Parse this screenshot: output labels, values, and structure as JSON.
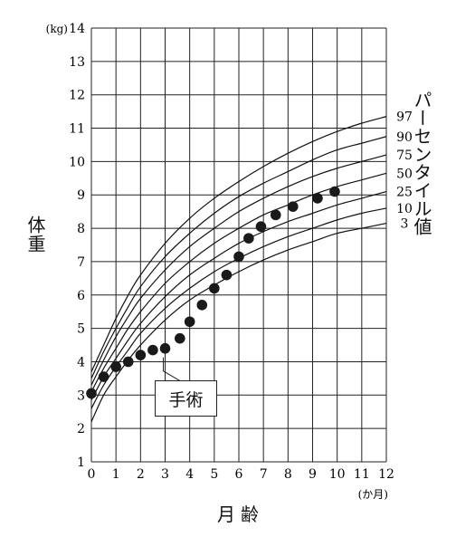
{
  "chart_data": {
    "type": "line",
    "xlabel": "月齢",
    "x_unit": "(か月)",
    "ylabel": "体重",
    "y_unit": "(kg)",
    "xlim": [
      0,
      12
    ],
    "ylim": [
      1,
      14
    ],
    "x_ticks": [
      "0",
      "1",
      "2",
      "3",
      "4",
      "5",
      "6",
      "7",
      "8",
      "9",
      "10",
      "11",
      "12"
    ],
    "y_ticks": [
      "1",
      "2",
      "3",
      "4",
      "5",
      "6",
      "7",
      "8",
      "9",
      "10",
      "11",
      "12",
      "13",
      "14"
    ],
    "grid": true,
    "percentile_title": "パーセンタイル値",
    "percentiles": [
      {
        "name": "97",
        "x": [
          0,
          0.5,
          1,
          1.5,
          2,
          3,
          4,
          5,
          6,
          7,
          8,
          9,
          10,
          11,
          12
        ],
        "values": [
          3.7,
          4.5,
          5.3,
          6.0,
          6.6,
          7.55,
          8.3,
          8.9,
          9.4,
          9.85,
          10.25,
          10.6,
          10.9,
          11.15,
          11.35
        ]
      },
      {
        "name": "90",
        "x": [
          0,
          0.5,
          1,
          1.5,
          2,
          3,
          4,
          5,
          6,
          7,
          8,
          9,
          10,
          11,
          12
        ],
        "values": [
          3.5,
          4.3,
          5.0,
          5.65,
          6.25,
          7.15,
          7.85,
          8.45,
          8.95,
          9.35,
          9.7,
          10.05,
          10.35,
          10.55,
          10.75
        ]
      },
      {
        "name": "75",
        "x": [
          0,
          0.5,
          1,
          1.5,
          2,
          3,
          4,
          5,
          6,
          7,
          8,
          9,
          10,
          11,
          12
        ],
        "values": [
          3.3,
          4.05,
          4.75,
          5.35,
          5.9,
          6.75,
          7.45,
          8.0,
          8.5,
          8.9,
          9.25,
          9.55,
          9.8,
          10.0,
          10.2
        ]
      },
      {
        "name": "50",
        "x": [
          0,
          0.5,
          1,
          1.5,
          2,
          3,
          4,
          5,
          6,
          7,
          8,
          9,
          10,
          11,
          12
        ],
        "values": [
          3.1,
          3.8,
          4.4,
          5.0,
          5.5,
          6.35,
          7.0,
          7.55,
          8.0,
          8.4,
          8.7,
          9.0,
          9.25,
          9.45,
          9.65
        ]
      },
      {
        "name": "25",
        "x": [
          0,
          0.5,
          1,
          1.5,
          2,
          3,
          4,
          5,
          6,
          7,
          8,
          9,
          10,
          11,
          12
        ],
        "values": [
          2.85,
          3.55,
          4.1,
          4.65,
          5.15,
          5.95,
          6.6,
          7.1,
          7.55,
          7.9,
          8.2,
          8.45,
          8.7,
          8.9,
          9.1
        ]
      },
      {
        "name": "10",
        "x": [
          0,
          0.5,
          1,
          1.5,
          2,
          3,
          4,
          5,
          6,
          7,
          8,
          9,
          10,
          11,
          12
        ],
        "values": [
          2.6,
          3.3,
          3.85,
          4.35,
          4.85,
          5.6,
          6.2,
          6.7,
          7.1,
          7.45,
          7.75,
          8.0,
          8.25,
          8.45,
          8.6
        ]
      },
      {
        "name": "3",
        "x": [
          0,
          0.5,
          1,
          1.5,
          2,
          3,
          4,
          5,
          6,
          7,
          8,
          9,
          10,
          11,
          12
        ],
        "values": [
          2.2,
          3.0,
          3.55,
          4.05,
          4.5,
          5.25,
          5.85,
          6.3,
          6.7,
          7.05,
          7.35,
          7.6,
          7.85,
          8.0,
          8.15
        ]
      }
    ],
    "patient": {
      "x": [
        0,
        0.5,
        1,
        1.5,
        2,
        2.5,
        3,
        3.6,
        4,
        4.5,
        5,
        5.5,
        6,
        6.4,
        6.9,
        7.5,
        8.2,
        9.2,
        9.9
      ],
      "values": [
        3.05,
        3.55,
        3.85,
        4.0,
        4.2,
        4.35,
        4.4,
        4.7,
        5.2,
        5.7,
        6.2,
        6.6,
        7.15,
        7.7,
        8.05,
        8.4,
        8.65,
        8.9,
        9.1
      ]
    },
    "annotation": {
      "text": "手術",
      "x": 3,
      "y": 4.4
    }
  }
}
